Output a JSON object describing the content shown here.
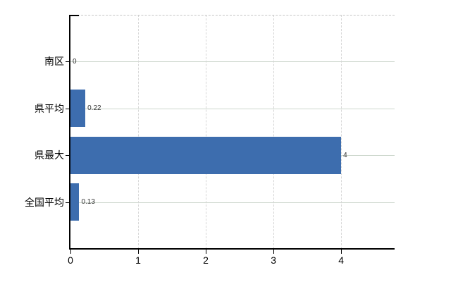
{
  "chart_data": {
    "type": "bar",
    "orientation": "horizontal",
    "title": "",
    "xlabel": "",
    "ylabel": "",
    "categories": [
      "南区",
      "県平均",
      "県最大",
      "全国平均"
    ],
    "values": [
      0,
      0.22,
      4,
      0.13
    ],
    "value_labels": [
      "0",
      "0.22",
      "4",
      "0.13"
    ],
    "x_ticks": [
      0,
      1,
      2,
      3,
      4
    ],
    "xlim": [
      0,
      4.79
    ],
    "legend_position": "none",
    "grid": "on",
    "colors": {
      "bar": "#3d6dae",
      "axis": "#000000",
      "gridline_horizontal": "#ccd6cc",
      "gridline_vertical": "#d6d6d6",
      "plot_top_border": "#c4c4c4",
      "background": "#ffffff",
      "category_text": "#000000",
      "tick_text": "#000000",
      "value_text": "#333333"
    }
  }
}
